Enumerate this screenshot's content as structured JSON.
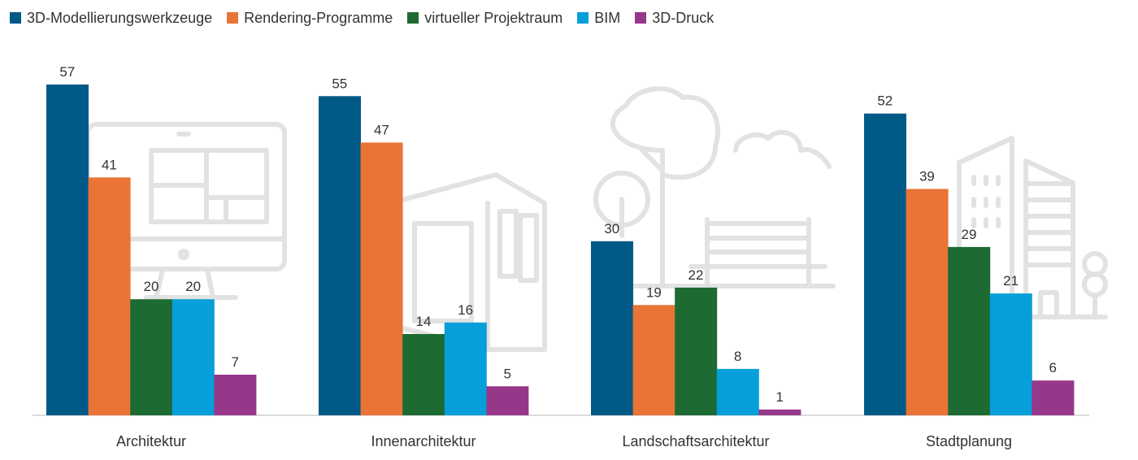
{
  "chart_data": {
    "type": "bar",
    "title": "",
    "xlabel": "",
    "ylabel": "",
    "ylim": [
      0,
      60
    ],
    "grid": false,
    "legend_position": "top-left",
    "categories": [
      "Architektur",
      "Innenarchitektur",
      "Landschaftsarchitektur",
      "Stadtplanung"
    ],
    "series": [
      {
        "name": "3D-Modellierungswerkzeuge",
        "color": "#005a87",
        "values": [
          57,
          55,
          30,
          52
        ]
      },
      {
        "name": "Rendering-Programme",
        "color": "#e97435",
        "values": [
          41,
          47,
          19,
          39
        ]
      },
      {
        "name": "virtueller Projektraum",
        "color": "#1d6b32",
        "values": [
          20,
          14,
          22,
          29
        ]
      },
      {
        "name": "BIM",
        "color": "#079fd9",
        "values": [
          20,
          16,
          8,
          21
        ]
      },
      {
        "name": "3D-Druck",
        "color": "#973789",
        "values": [
          7,
          5,
          1,
          6
        ]
      }
    ]
  }
}
